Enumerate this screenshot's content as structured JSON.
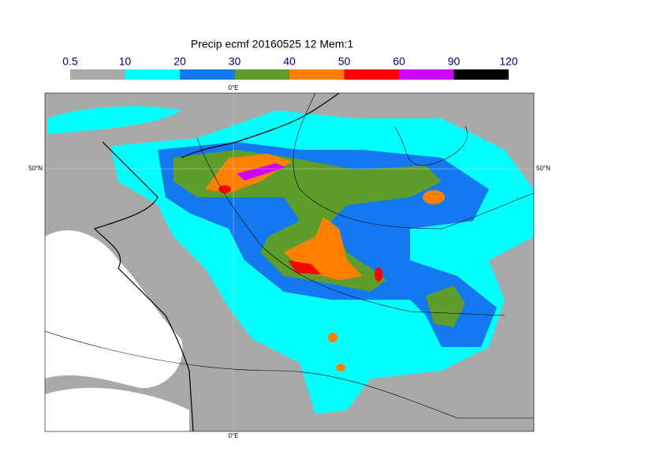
{
  "title": "Precip ecmf 20160525 12 Mem:1",
  "colorbar": {
    "levels": [
      0.5,
      10,
      20,
      30,
      40,
      50,
      60,
      90,
      120
    ],
    "colors": [
      "#a9a9a9",
      "#00ffff",
      "#1478f0",
      "#5e9c2c",
      "#ff8000",
      "#ff0000",
      "#d000ff",
      "#000000"
    ]
  },
  "axes": {
    "lon_top": "0°E",
    "lon_bottom": "0°E",
    "lat_left": "50°N",
    "lat_right": "50°N"
  }
}
